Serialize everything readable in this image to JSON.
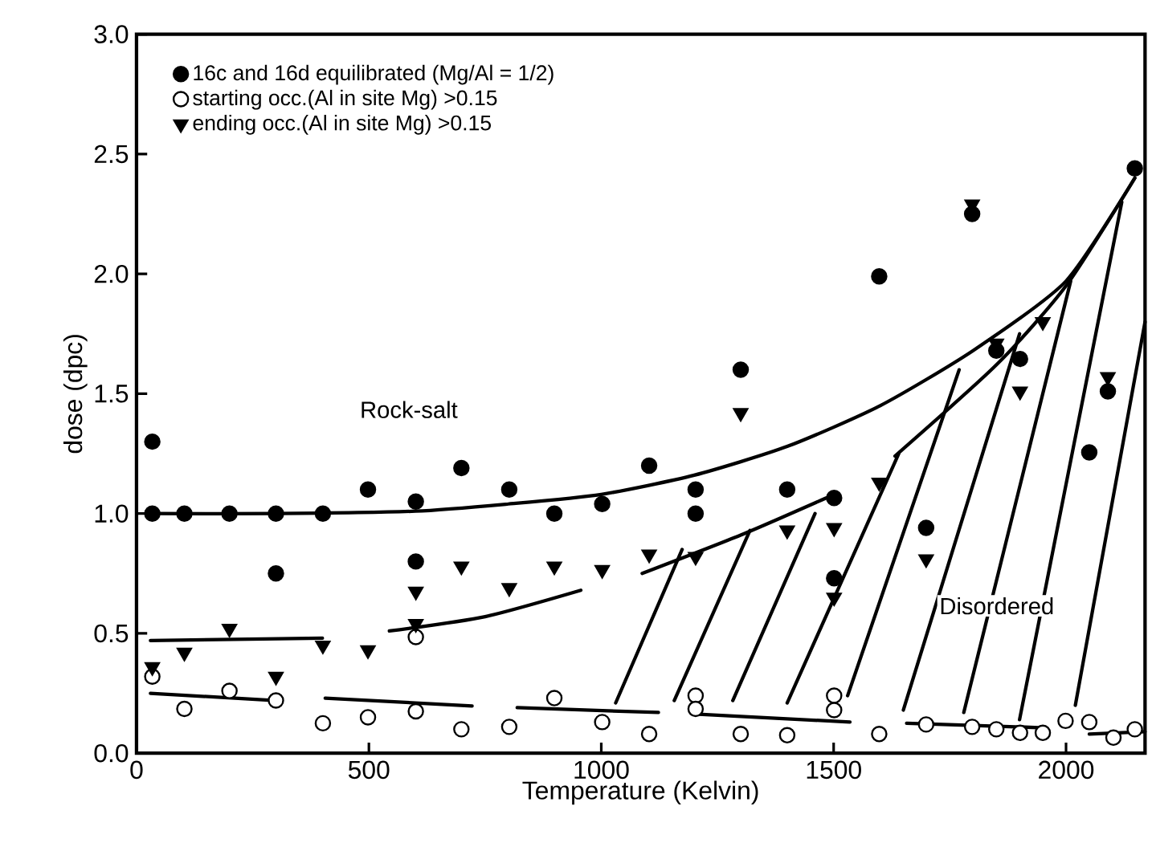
{
  "chart_data": {
    "type": "scatter",
    "xlabel": "Temperature (Kelvin)",
    "ylabel": "dose (dpc)",
    "xlim": [
      0,
      2170
    ],
    "ylim": [
      0,
      3.0
    ],
    "xticks": [
      0,
      500,
      1000,
      1500,
      2000
    ],
    "yticks": [
      {
        "value": 0,
        "label": "0.0"
      },
      {
        "value": 0.5,
        "label": "0.5"
      },
      {
        "value": 1.0,
        "label": "1.0"
      },
      {
        "value": 1.5,
        "label": "1.5"
      },
      {
        "value": 2.0,
        "label": "2.0"
      },
      {
        "value": 2.5,
        "label": "2.5"
      },
      {
        "value": 3.0,
        "label": "3.0"
      }
    ],
    "grid": false,
    "legend": "top left",
    "annotations": [
      "Rock-salt",
      "Disordered"
    ],
    "series": [
      {
        "type": "line",
        "color": "#000000",
        "marker": "none",
        "x": [
          30,
          300,
          600,
          800,
          1000,
          1200,
          1400,
          1600,
          1800,
          2000,
          2148
        ],
        "values": [
          1.0,
          1.0,
          1.01,
          1.04,
          1.08,
          1.16,
          1.28,
          1.45,
          1.68,
          1.97,
          2.4
        ]
      },
      {
        "type": "line",
        "color": "#000000",
        "marker": "none",
        "x": [
          30,
          400
        ],
        "values": [
          0.47,
          0.48
        ]
      },
      {
        "type": "line",
        "color": "#000000",
        "marker": "none",
        "x": [
          544,
          750,
          956
        ],
        "values": [
          0.51,
          0.57,
          0.68
        ]
      },
      {
        "type": "line",
        "color": "#000000",
        "marker": "none",
        "x": [
          1088,
          1300,
          1484
        ],
        "values": [
          0.75,
          0.91,
          1.065
        ]
      },
      {
        "type": "line",
        "color": "#000000",
        "marker": "none",
        "x": [
          1632,
          1850,
          2000,
          2148
        ],
        "values": [
          1.24,
          1.62,
          1.95,
          2.4
        ]
      },
      {
        "type": "line",
        "color": "#000000",
        "marker": "none",
        "x": [
          30,
          300
        ],
        "values": [
          0.25,
          0.22
        ]
      },
      {
        "type": "line",
        "color": "#000000",
        "marker": "none",
        "x": [
          406,
          722
        ],
        "values": [
          0.23,
          0.197
        ]
      },
      {
        "type": "line",
        "color": "#000000",
        "marker": "none",
        "x": [
          819,
          1123
        ],
        "values": [
          0.19,
          0.17
        ]
      },
      {
        "type": "line",
        "color": "#000000",
        "marker": "none",
        "x": [
          1209,
          1535
        ],
        "values": [
          0.163,
          0.13
        ]
      },
      {
        "type": "line",
        "color": "#000000",
        "marker": "none",
        "x": [
          1657,
          1942
        ],
        "values": [
          0.125,
          0.107
        ]
      },
      {
        "type": "line",
        "color": "#000000",
        "marker": "none",
        "x": [
          2050,
          2170
        ],
        "values": [
          0.08,
          0.09
        ]
      },
      {
        "type": "line",
        "color": "#000000",
        "marker": "none",
        "x": [
          1031,
          1174
        ],
        "values": [
          0.21,
          0.85
        ]
      },
      {
        "type": "line",
        "color": "#000000",
        "marker": "none",
        "x": [
          1157,
          1320
        ],
        "values": [
          0.22,
          0.93
        ]
      },
      {
        "type": "line",
        "color": "#000000",
        "marker": "none",
        "x": [
          1283,
          1460
        ],
        "values": [
          0.22,
          1.0
        ]
      },
      {
        "type": "line",
        "color": "#000000",
        "marker": "none",
        "x": [
          1400,
          1640
        ],
        "values": [
          0.21,
          1.25
        ]
      },
      {
        "type": "line",
        "color": "#000000",
        "marker": "none",
        "x": [
          1530,
          1770
        ],
        "values": [
          0.24,
          1.6
        ]
      },
      {
        "type": "line",
        "color": "#000000",
        "marker": "none",
        "x": [
          1650,
          1900
        ],
        "values": [
          0.18,
          1.75
        ]
      },
      {
        "type": "line",
        "color": "#000000",
        "marker": "none",
        "x": [
          1780,
          2010
        ],
        "values": [
          0.17,
          1.97
        ]
      },
      {
        "type": "line",
        "color": "#000000",
        "marker": "none",
        "x": [
          1900,
          2120
        ],
        "values": [
          0.14,
          2.3
        ]
      },
      {
        "type": "line",
        "color": "#000000",
        "marker": "none",
        "x": [
          2020,
          2170
        ],
        "values": [
          0.2,
          1.8
        ]
      },
      {
        "name": "16c and 16d equilibrated (Mg/Al = 1/2)",
        "color": "#000000",
        "marker": "circle",
        "x": [
          34,
          34,
          103,
          200,
          300,
          300,
          401,
          498,
          601,
          601,
          699,
          802,
          899,
          1002,
          1103,
          1203,
          1203,
          1300,
          1400,
          1501,
          1501,
          1598,
          1699,
          1798,
          1850,
          1901,
          2050,
          2090,
          2148
        ],
        "values": [
          1.3,
          1.0,
          1.0,
          1.0,
          1.0,
          0.75,
          1.0,
          1.1,
          1.05,
          0.8,
          1.19,
          1.1,
          1.0,
          1.04,
          1.2,
          1.1,
          1.0,
          1.6,
          1.1,
          1.065,
          0.73,
          1.99,
          0.94,
          2.25,
          1.68,
          1.645,
          1.255,
          1.51,
          2.44
        ]
      },
      {
        "name": "starting occ.(Al in site Mg) >0.15",
        "color": "#ffffff",
        "marker": "circle",
        "x": [
          34,
          103,
          200,
          300,
          401,
          498,
          601,
          601,
          699,
          802,
          899,
          1002,
          1103,
          1203,
          1203,
          1300,
          1400,
          1501,
          1501,
          1598,
          1699,
          1798,
          1850,
          1901,
          1950,
          1999,
          2050,
          2102,
          2148
        ],
        "values": [
          0.32,
          0.185,
          0.26,
          0.22,
          0.125,
          0.15,
          0.485,
          0.175,
          0.1,
          0.11,
          0.23,
          0.13,
          0.08,
          0.24,
          0.185,
          0.08,
          0.075,
          0.24,
          0.18,
          0.08,
          0.12,
          0.11,
          0.1,
          0.085,
          0.085,
          0.135,
          0.13,
          0.065,
          0.1
        ]
      },
      {
        "name": "ending occ.(Al in site Mg) >0.15",
        "color": "#000000",
        "marker": "triangle",
        "x": [
          34,
          103,
          200,
          300,
          401,
          498,
          601,
          601,
          699,
          802,
          899,
          1002,
          1103,
          1203,
          1300,
          1400,
          1501,
          1501,
          1598,
          1699,
          1798,
          1850,
          1901,
          1950,
          2090
        ],
        "values": [
          0.36,
          0.42,
          0.52,
          0.32,
          0.45,
          0.43,
          0.675,
          0.54,
          0.78,
          0.69,
          0.78,
          0.765,
          0.83,
          0.82,
          1.42,
          0.93,
          0.94,
          0.65,
          1.13,
          0.81,
          2.29,
          1.71,
          1.51,
          1.8,
          1.57
        ]
      }
    ]
  }
}
